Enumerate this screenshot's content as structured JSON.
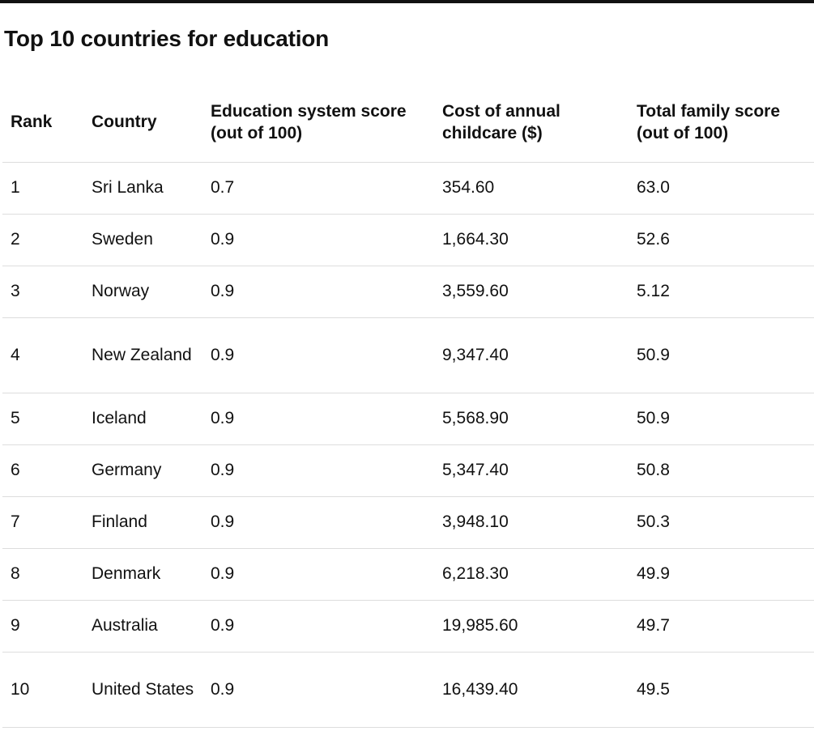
{
  "title": "Top 10 countries for education",
  "headers": {
    "rank": "Rank",
    "country": "Country",
    "education": "Education system score (out of 100)",
    "cost": "Cost of annual childcare ($)",
    "total": "Total family score (out of 100)"
  },
  "rows": [
    {
      "rank": "1",
      "country": "Sri Lanka",
      "education": "0.7",
      "cost": "354.60",
      "total": "63.0"
    },
    {
      "rank": "2",
      "country": "Sweden",
      "education": "0.9",
      "cost": "1,664.30",
      "total": "52.6"
    },
    {
      "rank": "3",
      "country": "Norway",
      "education": "0.9",
      "cost": "3,559.60",
      "total": "5.12"
    },
    {
      "rank": "4",
      "country": "New Zealand",
      "education": "0.9",
      "cost": "9,347.40",
      "total": "50.9"
    },
    {
      "rank": "5",
      "country": "Iceland",
      "education": "0.9",
      "cost": "5,568.90",
      "total": "50.9"
    },
    {
      "rank": "6",
      "country": "Germany",
      "education": "0.9",
      "cost": "5,347.40",
      "total": "50.8"
    },
    {
      "rank": "7",
      "country": "Finland",
      "education": "0.9",
      "cost": "3,948.10",
      "total": "50.3"
    },
    {
      "rank": "8",
      "country": "Denmark",
      "education": "0.9",
      "cost": "6,218.30",
      "total": "49.9"
    },
    {
      "rank": "9",
      "country": "Australia",
      "education": "0.9",
      "cost": "19,985.60",
      "total": "49.7"
    },
    {
      "rank": "10",
      "country": "United States",
      "education": "0.9",
      "cost": "16,439.40",
      "total": "49.5"
    }
  ]
}
